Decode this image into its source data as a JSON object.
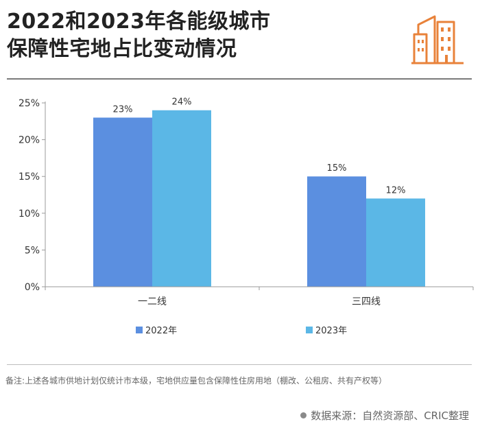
{
  "header": {
    "title_line1": "2022和2023年各能级城市",
    "title_line2": "保障性宅地占比变动情况",
    "icon": "city-buildings-icon",
    "icon_color": "#E8823A"
  },
  "chart_data": {
    "type": "bar",
    "categories": [
      "一二线",
      "三四线"
    ],
    "series": [
      {
        "name": "2022年",
        "values": [
          23,
          15
        ],
        "color": "#5B8FE0"
      },
      {
        "name": "2023年",
        "values": [
          24,
          12
        ],
        "color": "#5BB7E6"
      }
    ],
    "data_labels": [
      [
        "23%",
        "24%"
      ],
      [
        "15%",
        "12%"
      ]
    ],
    "y_ticks": [
      "0%",
      "5%",
      "10%",
      "15%",
      "20%",
      "25%"
    ],
    "ylim": [
      0,
      25
    ],
    "ytick_values": [
      0,
      5,
      10,
      15,
      20,
      25
    ],
    "grid": false,
    "legend_position": "bottom",
    "title": "",
    "xlabel": "",
    "ylabel": ""
  },
  "footer": {
    "note": "备注:上述各城市供地计划仅统计市本级，宅地供应量包含保障性住房用地（棚改、公租房、共有产权等）",
    "source": "数据来源：自然资源部、CRIC整理"
  }
}
